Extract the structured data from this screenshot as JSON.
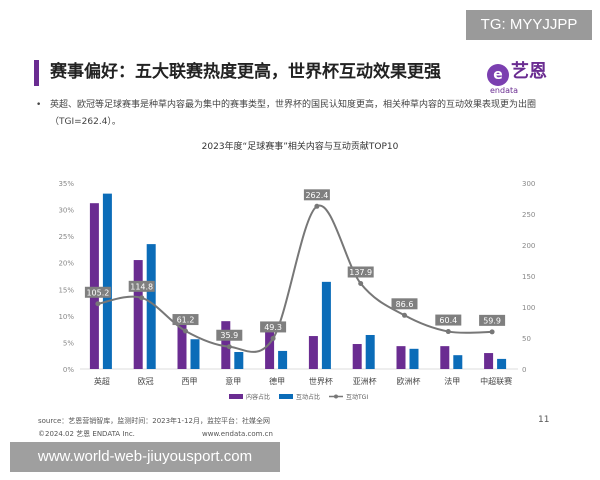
{
  "watermark_top": "TG: MYYJJPP",
  "watermark_bottom": "www.world-web-jiuyousport.com",
  "header": {
    "title": "赛事偏好：五大联赛热度更高，世界杯互动效果更强",
    "logo_cn": "艺恩",
    "logo_en": "endata",
    "bullet": "英超、欧冠等足球赛事是种草内容最为集中的赛事类型，世界杯的国民认知度更高，相关种草内容的互动效果表现更为出圈（TGI=262.4）。"
  },
  "footer": {
    "source": "source：艺恩营销智库，监测时间：2023年1-12月，监控平台：社媒全网",
    "copyright": "©2024.02  艺恩 ENDATA Inc.",
    "url": "www.endata.com.cn",
    "page": "11"
  },
  "colors": {
    "content": "#6a2c91",
    "interaction": "#0b6cb8",
    "tgi": "#777777",
    "label_bg": "#7f7f7f"
  },
  "chart_data": {
    "type": "bar",
    "title": "2023年度“足球赛事”相关内容与互动贡献TOP10",
    "categories": [
      "英超",
      "欧冠",
      "西甲",
      "意甲",
      "德甲",
      "世界杯",
      "亚洲杯",
      "欧洲杯",
      "法甲",
      "中超联赛"
    ],
    "series": [
      {
        "name": "内容占比",
        "type": "bar",
        "axis": "left",
        "values": [
          31.2,
          20.5,
          8.7,
          9.0,
          7.0,
          6.2,
          4.7,
          4.3,
          4.3,
          3.0
        ]
      },
      {
        "name": "互动占比",
        "type": "bar",
        "axis": "left",
        "values": [
          33.0,
          23.5,
          5.6,
          3.2,
          3.4,
          16.4,
          6.4,
          3.8,
          2.6,
          1.9
        ]
      },
      {
        "name": "互动TGI",
        "type": "line",
        "axis": "right",
        "values": [
          105.2,
          114.8,
          61.2,
          35.9,
          49.3,
          262.4,
          137.9,
          86.6,
          60.4,
          59.9
        ]
      }
    ],
    "ylim_left": [
      0,
      35
    ],
    "yticks_left": [
      "0%",
      "5%",
      "10%",
      "15%",
      "20%",
      "25%",
      "30%",
      "35%"
    ],
    "ylim_right": [
      0,
      300
    ],
    "yticks_right": [
      "0",
      "50",
      "100",
      "150",
      "200",
      "250",
      "300"
    ],
    "grid": false,
    "legend": "bottom"
  }
}
